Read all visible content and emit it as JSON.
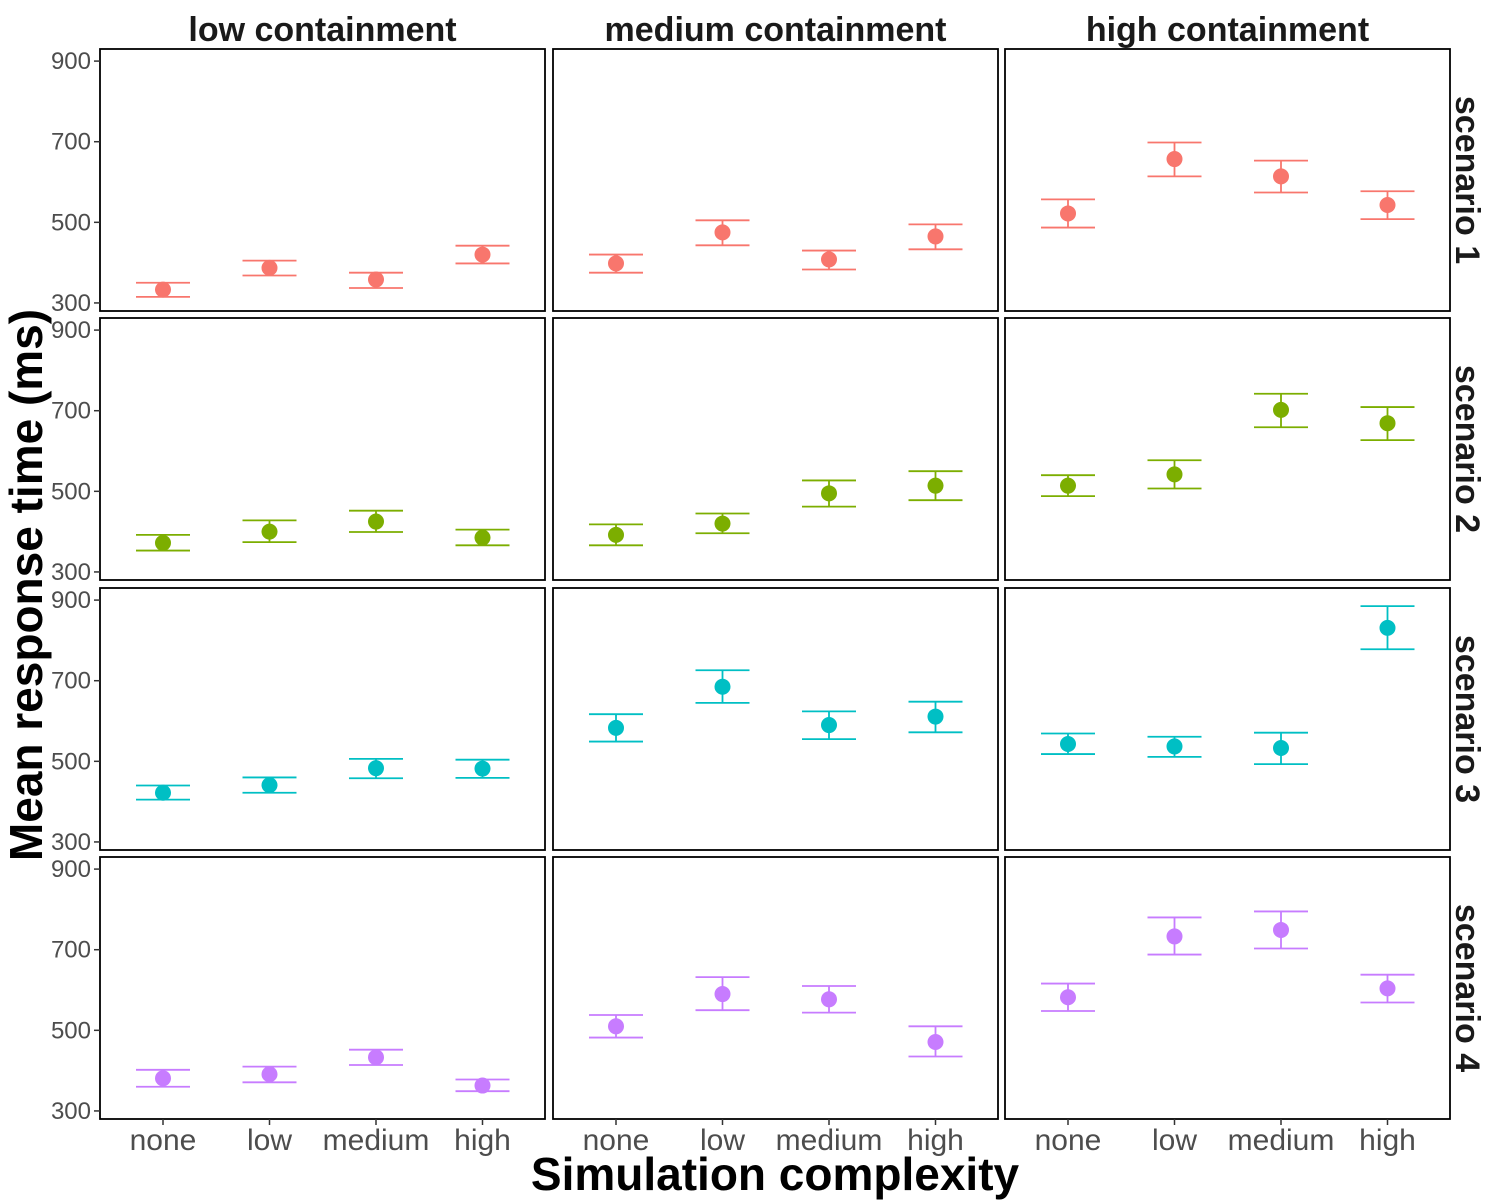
{
  "chart_data": {
    "type": "scatter",
    "subtype": "faceted point plot with error bars",
    "xlabel": "Simulation complexity",
    "ylabel": "Mean response time (ms)",
    "categories": [
      "none",
      "low",
      "medium",
      "high"
    ],
    "columns": [
      "low containment",
      "medium containment",
      "high containment"
    ],
    "rows": [
      "scenario 1",
      "scenario 2",
      "scenario 3",
      "scenario 4"
    ],
    "ylim": [
      280,
      930
    ],
    "yticks": [
      300,
      500,
      700,
      900
    ],
    "ytick_labels": [
      "300",
      "500",
      "700",
      "900"
    ],
    "grid": false,
    "legend": "none",
    "row_colors": [
      "#F8766D",
      "#7CAE00",
      "#00BFC4",
      "#C77CFF"
    ],
    "panels": [
      {
        "row": "scenario 1",
        "column": "low containment",
        "mean": [
          333,
          387,
          358,
          420
        ],
        "lower": [
          315,
          368,
          337,
          398
        ],
        "upper": [
          350,
          405,
          375,
          442
        ]
      },
      {
        "row": "scenario 1",
        "column": "medium containment",
        "mean": [
          398,
          475,
          408,
          465
        ],
        "lower": [
          375,
          443,
          383,
          433
        ],
        "upper": [
          420,
          505,
          430,
          495
        ]
      },
      {
        "row": "scenario 1",
        "column": "high containment",
        "mean": [
          522,
          657,
          614,
          543
        ],
        "lower": [
          487,
          614,
          574,
          508
        ],
        "upper": [
          557,
          698,
          653,
          577
        ]
      },
      {
        "row": "scenario 2",
        "column": "low containment",
        "mean": [
          372,
          400,
          425,
          385
        ],
        "lower": [
          353,
          374,
          399,
          366
        ],
        "upper": [
          392,
          428,
          452,
          405
        ]
      },
      {
        "row": "scenario 2",
        "column": "medium containment",
        "mean": [
          392,
          420,
          495,
          514
        ],
        "lower": [
          366,
          396,
          462,
          478
        ],
        "upper": [
          418,
          445,
          527,
          550
        ]
      },
      {
        "row": "scenario 2",
        "column": "high containment",
        "mean": [
          514,
          542,
          702,
          669
        ],
        "lower": [
          488,
          507,
          659,
          627
        ],
        "upper": [
          540,
          577,
          742,
          709
        ]
      },
      {
        "row": "scenario 3",
        "column": "low containment",
        "mean": [
          422,
          441,
          483,
          482
        ],
        "lower": [
          405,
          422,
          458,
          459
        ],
        "upper": [
          440,
          460,
          506,
          504
        ]
      },
      {
        "row": "scenario 3",
        "column": "medium containment",
        "mean": [
          583,
          685,
          590,
          611
        ],
        "lower": [
          549,
          645,
          555,
          572
        ],
        "upper": [
          617,
          726,
          624,
          648
        ]
      },
      {
        "row": "scenario 3",
        "column": "high containment",
        "mean": [
          543,
          537,
          533,
          831
        ],
        "lower": [
          518,
          511,
          493,
          778
        ],
        "upper": [
          569,
          561,
          571,
          885
        ]
      },
      {
        "row": "scenario 4",
        "column": "low containment",
        "mean": [
          381,
          391,
          433,
          363
        ],
        "lower": [
          360,
          371,
          414,
          349
        ],
        "upper": [
          402,
          410,
          452,
          378
        ]
      },
      {
        "row": "scenario 4",
        "column": "medium containment",
        "mean": [
          510,
          590,
          577,
          471
        ],
        "lower": [
          482,
          550,
          544,
          435
        ],
        "upper": [
          538,
          632,
          610,
          510
        ]
      },
      {
        "row": "scenario 4",
        "column": "high containment",
        "mean": [
          582,
          733,
          749,
          604
        ],
        "lower": [
          548,
          688,
          703,
          569
        ],
        "upper": [
          616,
          780,
          795,
          638
        ]
      }
    ]
  }
}
